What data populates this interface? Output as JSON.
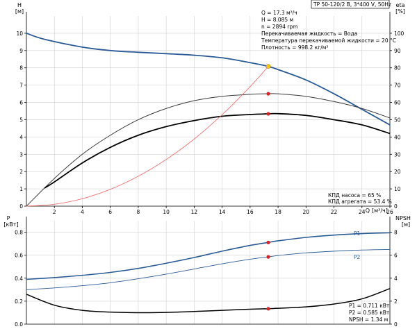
{
  "chart_data": [
    {
      "type": "line",
      "header": "TP 50-120/2 B, 3*400 V, 50Hz",
      "ylabel": "H",
      "yunit": "[м]",
      "y2label": "eta",
      "y2unit": "[%]",
      "xlabel": "Q",
      "xunit": "[м³/ч]",
      "xlim": [
        0,
        26
      ],
      "ylim": [
        0,
        11
      ],
      "y2lim": [
        0,
        110
      ],
      "xticks": [
        2,
        4,
        6,
        8,
        10,
        12,
        14,
        16,
        18,
        20,
        22,
        24,
        26
      ],
      "yticks": [
        0,
        1,
        2,
        3,
        4,
        5,
        6,
        7,
        8,
        9,
        10
      ],
      "y2ticks": [
        0,
        10,
        20,
        30,
        40,
        50,
        60,
        70,
        80,
        90,
        100
      ],
      "grid": true,
      "operating_point_q": 17.3,
      "series": [
        {
          "axis": "y",
          "color": "#2a5a95",
          "width": 1.8,
          "x": [
            0,
            1.3,
            4,
            6,
            8,
            10,
            12,
            14,
            16,
            17.3,
            18,
            20,
            22,
            24,
            26
          ],
          "y": [
            10.0,
            9.65,
            9.2,
            9.0,
            8.9,
            8.82,
            8.73,
            8.58,
            8.3,
            8.085,
            7.9,
            7.3,
            6.5,
            5.6,
            4.7
          ]
        },
        {
          "axis": "y",
          "color": "#3a3a3a",
          "width": 1.0,
          "x": [
            0,
            2,
            4,
            6,
            8,
            10,
            12,
            14,
            16,
            17.3,
            18,
            20,
            22,
            24,
            26
          ],
          "y": [
            0,
            1.6,
            3.0,
            4.1,
            5.0,
            5.65,
            6.1,
            6.35,
            6.47,
            6.5,
            6.5,
            6.35,
            6.05,
            5.65,
            5.1
          ]
        },
        {
          "axis": "y",
          "color": "#000000",
          "width": 1.8,
          "x": [
            1.3,
            2,
            4,
            6,
            8,
            10,
            12,
            14,
            16,
            17.3,
            18,
            20,
            22,
            24,
            26
          ],
          "y": [
            1.05,
            1.4,
            2.5,
            3.4,
            4.1,
            4.6,
            4.95,
            5.2,
            5.3,
            5.34,
            5.35,
            5.25,
            5.0,
            4.7,
            4.2
          ]
        },
        {
          "axis": "y",
          "color": "#f07070",
          "width": 0.9,
          "x": [
            0,
            2,
            4,
            6,
            8,
            10,
            12,
            14,
            16,
            17.3
          ],
          "y": [
            0,
            0.11,
            0.43,
            0.97,
            1.73,
            2.7,
            3.88,
            5.29,
            6.91,
            8.085
          ]
        }
      ],
      "annotations": [
        "Q = 17.3 м³/ч",
        "H = 8.085 м",
        "n = 2894 rpm",
        "Перекачиваемая жидкость = Вода",
        "Температура перекачиваемой жидкости = 20 °C",
        "Плотность = 998.2 кг/м³"
      ],
      "notes": [
        "КПД насоса = 65 %",
        "КПД агрегата = 53.4 %"
      ]
    },
    {
      "type": "line",
      "ylabel": "P",
      "yunit": "[кВт]",
      "y2label": "NPSH",
      "y2unit": "[м]",
      "xlim": [
        0,
        26
      ],
      "ylim": [
        0,
        0.9
      ],
      "y2lim": [
        0,
        9
      ],
      "yticks": [
        0.0,
        0.2,
        0.4,
        0.6,
        0.8
      ],
      "y2ticks": [
        0,
        2,
        4,
        6,
        8
      ],
      "grid": true,
      "series": [
        {
          "name": "P1",
          "axis": "y",
          "color": "#2a5a95",
          "width": 1.6,
          "x": [
            0,
            2,
            4,
            6,
            8,
            10,
            12,
            14,
            16,
            17.3,
            18,
            20,
            22,
            24,
            26
          ],
          "y": [
            0.39,
            0.405,
            0.425,
            0.45,
            0.485,
            0.53,
            0.58,
            0.635,
            0.685,
            0.711,
            0.725,
            0.755,
            0.775,
            0.788,
            0.795
          ]
        },
        {
          "name": "P2",
          "axis": "y",
          "color": "#2a5a95",
          "width": 0.9,
          "x": [
            0,
            2,
            4,
            6,
            8,
            10,
            12,
            14,
            16,
            17.3,
            18,
            20,
            22,
            24,
            26
          ],
          "y": [
            0.3,
            0.315,
            0.335,
            0.36,
            0.395,
            0.435,
            0.48,
            0.525,
            0.565,
            0.585,
            0.597,
            0.62,
            0.635,
            0.645,
            0.65
          ]
        },
        {
          "axis": "y2",
          "color": "#000000",
          "width": 1.5,
          "x": [
            0,
            2,
            4,
            6,
            8,
            10,
            12,
            14,
            16,
            17.3,
            18,
            20,
            22,
            24,
            26
          ],
          "y": [
            2.6,
            1.65,
            1.2,
            1.05,
            1.0,
            1.02,
            1.1,
            1.2,
            1.3,
            1.34,
            1.38,
            1.5,
            1.75,
            2.2,
            3.1
          ]
        }
      ],
      "notes": [
        "P1 = 0.711 кВт",
        "P2 = 0.585 кВт",
        "NPSH = 1.34 м"
      ]
    }
  ]
}
